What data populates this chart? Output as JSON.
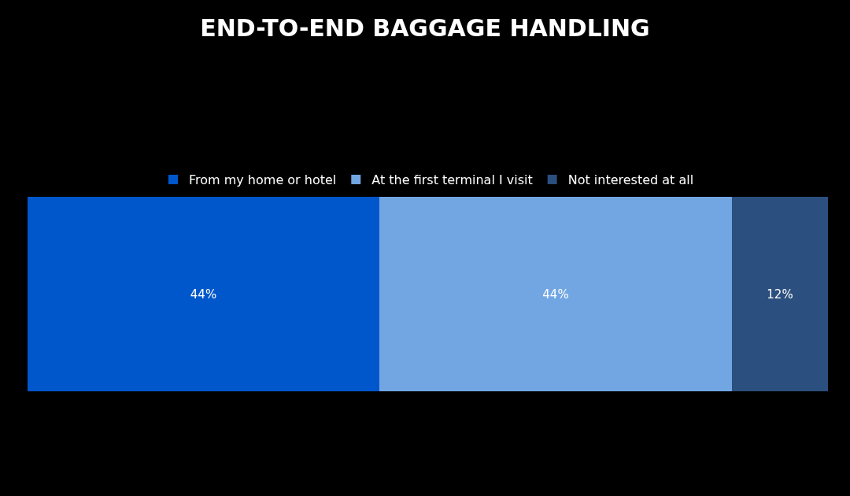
{
  "chart_data": {
    "type": "bar",
    "title": "END-TO-END BAGGAGE HANDLING",
    "orientation": "horizontal",
    "stacked": true,
    "categories": [
      null
    ],
    "legend": "top",
    "series": [
      {
        "name": "From my home or hotel",
        "color": "#0057cc",
        "values": [
          44
        ],
        "value_labels": [
          "44%"
        ]
      },
      {
        "name": "At the first terminal I visit",
        "color": "#71a6e3",
        "values": [
          44
        ],
        "value_labels": [
          "44%"
        ]
      },
      {
        "name": "Not interested at all",
        "color": "#2b4f7e",
        "values": [
          12
        ],
        "value_labels": [
          "12%"
        ]
      }
    ]
  }
}
